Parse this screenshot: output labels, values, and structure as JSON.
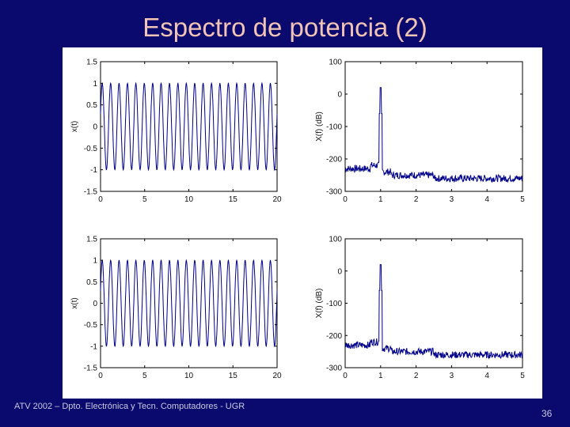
{
  "slide": {
    "title": "Espectro de potencia (2)",
    "footer": "ATV 2002 – Dpto. Electrónica y Tecn. Computadores - UGR",
    "page_number": "36"
  },
  "colors": {
    "background": "#0a0a6e",
    "title": "#f2c4b6",
    "trace": "#00008b"
  },
  "chart_data": [
    {
      "type": "line",
      "ylabel": "x(t)",
      "xlim": [
        0,
        20
      ],
      "ylim": [
        -1.5,
        1.5
      ],
      "xticks": [
        "0",
        "5",
        "10",
        "15",
        "20"
      ],
      "yticks": [
        "1.5",
        "1",
        "0.5",
        "0",
        "-0.5",
        "-1",
        "-1.5"
      ],
      "signal": {
        "kind": "sinusoid",
        "amplitude": 1,
        "frequency": 1,
        "t_range": [
          0,
          20
        ]
      }
    },
    {
      "type": "line",
      "ylabel": "X(f) (dB)",
      "xlim": [
        0,
        5
      ],
      "ylim": [
        -300,
        100
      ],
      "xticks": [
        "0",
        "1",
        "2",
        "3",
        "4",
        "5"
      ],
      "yticks": [
        "100",
        "0",
        "-100",
        "-200",
        "-300"
      ],
      "signal": {
        "kind": "spectrum",
        "peak_frequency": 1,
        "peak_level": 20,
        "floor_level": -250
      }
    },
    {
      "type": "line",
      "ylabel": "x(t)",
      "xlim": [
        0,
        20
      ],
      "ylim": [
        -1.5,
        1.5
      ],
      "xticks": [
        "0",
        "5",
        "10",
        "15",
        "20"
      ],
      "yticks": [
        "1.5",
        "1",
        "0.5",
        "0",
        "-0.5",
        "-1",
        "-1.5"
      ],
      "signal": {
        "kind": "sinusoid",
        "amplitude": 1,
        "frequency": 1,
        "t_range": [
          0,
          20
        ]
      }
    },
    {
      "type": "line",
      "ylabel": "X(f) (dB)",
      "xlim": [
        0,
        5
      ],
      "ylim": [
        -300,
        100
      ],
      "xticks": [
        "0",
        "1",
        "2",
        "3",
        "4",
        "5"
      ],
      "yticks": [
        "100",
        "0",
        "-100",
        "-200",
        "-300"
      ],
      "signal": {
        "kind": "spectrum",
        "peak_frequency": 1,
        "peak_level": 20,
        "floor_level": -250
      }
    }
  ]
}
